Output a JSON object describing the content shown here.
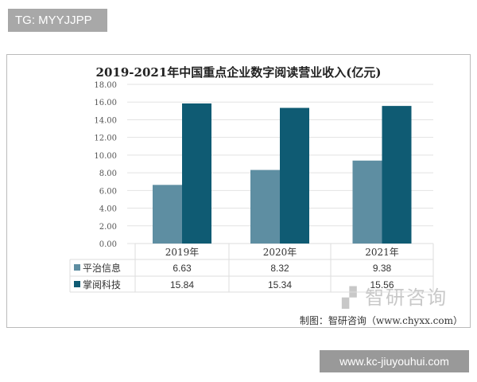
{
  "tag": "TG: MYYJJPP",
  "footer_tag": "www.kc-jiuyouhui.com",
  "watermark": "智研咨询",
  "watermark_url": "www.chyxx.com",
  "source": "制图：智研咨询（www.chyxx.com）",
  "chart_data": {
    "type": "bar",
    "title": "2019-2021年中国重点企业数字阅读营业收入(亿元)",
    "categories": [
      "2019年",
      "2020年",
      "2021年"
    ],
    "series": [
      {
        "name": "平治信息",
        "values": [
          6.63,
          8.32,
          9.38
        ],
        "color": "#5e8ea2"
      },
      {
        "name": "掌阅科技",
        "values": [
          15.84,
          15.34,
          15.56
        ],
        "color": "#0f5b73"
      }
    ],
    "yticks": [
      "0.00",
      "2.00",
      "4.00",
      "6.00",
      "8.00",
      "10.00",
      "12.00",
      "14.00",
      "16.00",
      "18.00"
    ],
    "ylim": [
      0,
      18
    ],
    "grid": true,
    "legend": "data-table"
  }
}
